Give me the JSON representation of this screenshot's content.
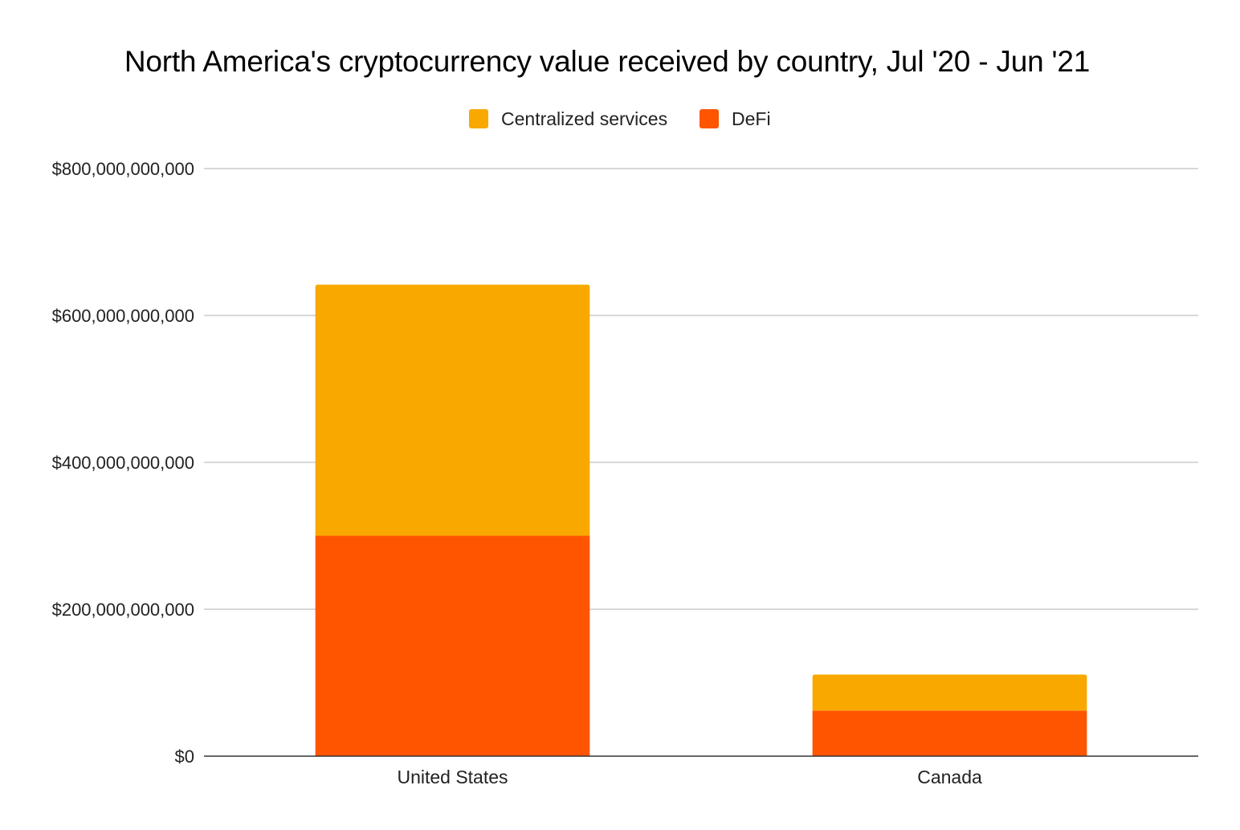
{
  "chart_data": {
    "type": "bar",
    "stacked": true,
    "title": "North America's cryptocurrency value received by country, Jul '20 - Jun '21",
    "categories": [
      "United States",
      "Canada"
    ],
    "series": [
      {
        "name": "DeFi",
        "color": "#ff5500",
        "values": [
          300000000000,
          62000000000
        ]
      },
      {
        "name": "Centralized services",
        "color": "#f9a800",
        "values": [
          342000000000,
          49000000000
        ]
      }
    ],
    "legend": {
      "position": "top-center",
      "order": [
        "Centralized services",
        "DeFi"
      ]
    },
    "y_ticks": [
      "$0",
      "$200,000,000,000",
      "$400,000,000,000",
      "$600,000,000,000",
      "$800,000,000,000"
    ],
    "ylim": [
      0,
      800000000000
    ],
    "grid": true,
    "xlabel": "",
    "ylabel": ""
  }
}
